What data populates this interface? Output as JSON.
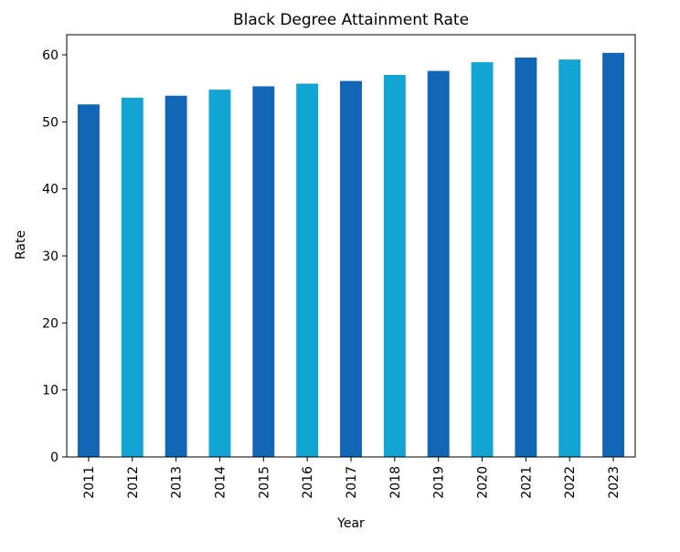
{
  "chart_data": {
    "type": "bar",
    "title": "Black Degree Attainment Rate",
    "xlabel": "Year",
    "ylabel": "Rate",
    "categories": [
      "2011",
      "2012",
      "2013",
      "2014",
      "2015",
      "2016",
      "2017",
      "2018",
      "2019",
      "2020",
      "2021",
      "2022",
      "2023"
    ],
    "values": [
      52.6,
      53.6,
      53.9,
      54.8,
      55.3,
      55.7,
      56.1,
      57.0,
      57.6,
      58.9,
      59.6,
      59.3,
      60.3
    ],
    "ylim": [
      0,
      63
    ],
    "yticks": [
      0,
      10,
      20,
      30,
      40,
      50,
      60
    ],
    "grid": false,
    "legend": "none",
    "colors": [
      "#1167b6",
      "#12a5d3"
    ]
  }
}
